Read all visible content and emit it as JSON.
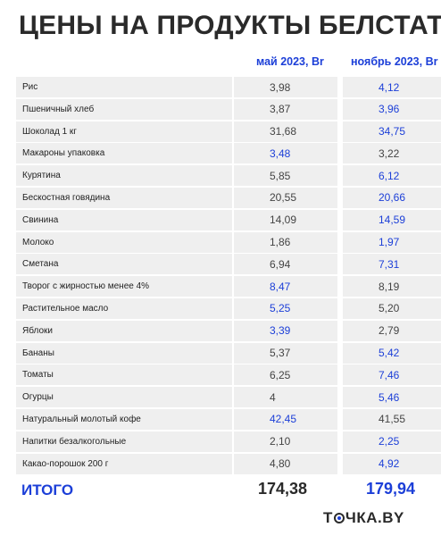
{
  "title": "ЦЕНЫ НА ПРОДУКТЫ БЕЛСТАТ",
  "columns": {
    "may": "май 2023, Br",
    "nov": "ноябрь 2023, Br"
  },
  "items": [
    {
      "name": "Рис",
      "may": "3,98",
      "nov": "4,12",
      "higher": "nov"
    },
    {
      "name": "Пшеничный хлеб",
      "may": "3,87",
      "nov": "3,96",
      "higher": "nov"
    },
    {
      "name": "Шоколад 1 кг",
      "may": "31,68",
      "nov": "34,75",
      "higher": "nov"
    },
    {
      "name": "Макароны упаковка",
      "may": "3,48",
      "nov": "3,22",
      "higher": "may"
    },
    {
      "name": "Курятина",
      "may": "5,85",
      "nov": "6,12",
      "higher": "nov"
    },
    {
      "name": "Бескостная говядина",
      "may": "20,55",
      "nov": "20,66",
      "higher": "nov"
    },
    {
      "name": "Свинина",
      "may": "14,09",
      "nov": "14,59",
      "higher": "nov"
    },
    {
      "name": "Молоко",
      "may": "1,86",
      "nov": "1,97",
      "higher": "nov"
    },
    {
      "name": "Сметана",
      "may": "6,94",
      "nov": "7,31",
      "higher": "nov"
    },
    {
      "name": "Творог с жирностью менее 4%",
      "may": "8,47",
      "nov": "8,19",
      "higher": "may"
    },
    {
      "name": "Растительное масло",
      "may": "5,25",
      "nov": "5,20",
      "higher": "may"
    },
    {
      "name": "Яблоки",
      "may": "3,39",
      "nov": "2,79",
      "higher": "may"
    },
    {
      "name": "Бананы",
      "may": "5,37",
      "nov": "5,42",
      "higher": "nov"
    },
    {
      "name": "Томаты",
      "may": "6,25",
      "nov": "7,46",
      "higher": "nov"
    },
    {
      "name": "Огурцы",
      "may": "4",
      "nov": "5,46",
      "higher": "nov"
    },
    {
      "name": "Натуральный молотый кофе",
      "may": "42,45",
      "nov": "41,55",
      "higher": "may"
    },
    {
      "name": "Напитки безалкогольные",
      "may": "2,10",
      "nov": "2,25",
      "higher": "nov"
    },
    {
      "name": "Какао-порошок 200 г",
      "may": "4,80",
      "nov": "4,92",
      "higher": "nov"
    }
  ],
  "total": {
    "label": "ИТОГО",
    "may": "174,38",
    "nov": "179,94"
  },
  "logo": {
    "prefix": "Т",
    "suffix": "ЧКА.BY"
  },
  "colors": {
    "accent": "#1c3fd8",
    "cell_bg": "#efefef",
    "text": "#2a2a2a"
  }
}
